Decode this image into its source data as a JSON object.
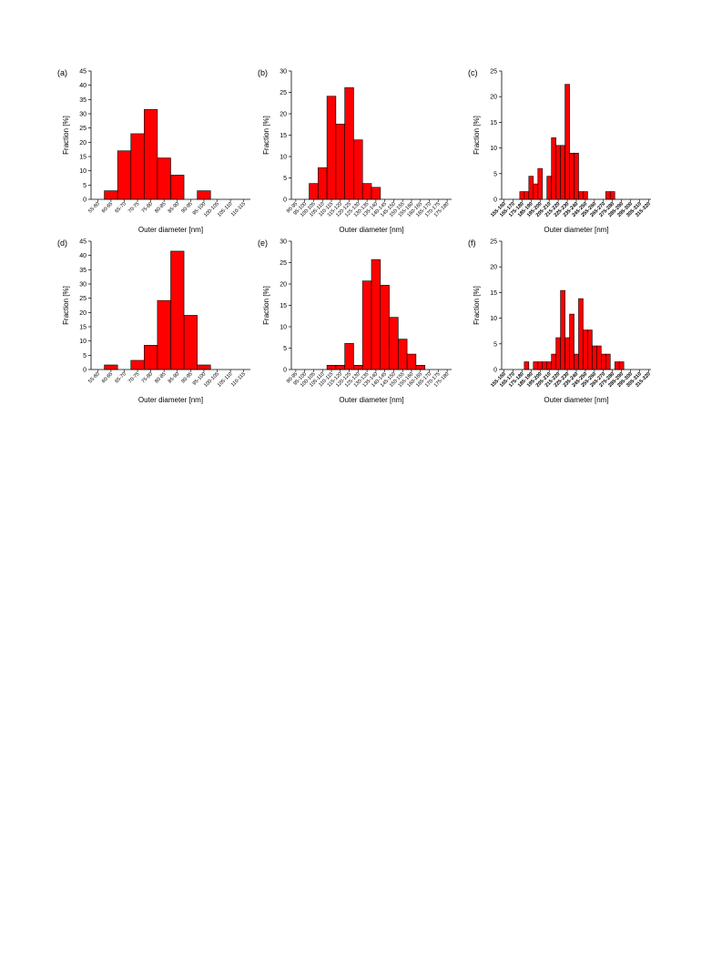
{
  "figure": {
    "bar_color": "#ff0000",
    "bar_stroke": "#000000"
  },
  "chart_data": [
    {
      "type": "bar",
      "panel_label": "(a)",
      "xlabel": "Outer diameter [nm]",
      "ylabel": "Fraction [%]",
      "ylim": [
        0,
        45
      ],
      "yticks": [
        0,
        5,
        10,
        15,
        20,
        25,
        30,
        35,
        40,
        45
      ],
      "categories": [
        "55-60",
        "60-65",
        "65-70",
        "70-75",
        "75-80",
        "80-85",
        "85-90",
        "90-95",
        "95-100",
        "100-105",
        "105-110",
        "110-115"
      ],
      "values": [
        0,
        3,
        17,
        23,
        31.5,
        14.5,
        8.5,
        0,
        3,
        0,
        0,
        0
      ]
    },
    {
      "type": "bar",
      "panel_label": "(b)",
      "xlabel": "Outer diameter [nm]",
      "ylabel": "Fraction [%]",
      "ylim": [
        0,
        30
      ],
      "yticks": [
        0,
        5,
        10,
        15,
        20,
        25,
        30
      ],
      "categories": [
        "90-95",
        "95-100",
        "100-105",
        "105-110",
        "110-115",
        "115-120",
        "120-125",
        "125-130",
        "130-135",
        "135-140",
        "140-145",
        "145-150",
        "150-155",
        "155-160",
        "160-165",
        "165-170",
        "170-175",
        "175-180"
      ],
      "values": [
        0,
        0,
        3.7,
        7.4,
        24.1,
        17.6,
        26.1,
        13.9,
        3.7,
        2.8,
        0,
        0,
        0,
        0,
        0,
        0,
        0,
        0
      ]
    },
    {
      "type": "bar",
      "panel_label": "(c)",
      "xlabel": "Outer diameter [nm]",
      "ylabel": "Fraction [%]",
      "ylim": [
        0,
        25
      ],
      "yticks": [
        0,
        5,
        10,
        15,
        20,
        25
      ],
      "categories": [
        "155-160",
        "160-165",
        "165-170",
        "170-175",
        "175-180",
        "180-185",
        "185-190",
        "190-195",
        "195-200",
        "200-205",
        "205-210",
        "210-215",
        "215-220",
        "220-225",
        "225-230",
        "230-235",
        "235-240",
        "240-245",
        "245-250",
        "250-255",
        "255-260",
        "260-265",
        "265-270",
        "270-275",
        "275-280",
        "280-285",
        "285-290",
        "290-295",
        "295-300",
        "300-305",
        "305-310",
        "310-315",
        "315-320"
      ],
      "tick_labels": [
        "155-160",
        "165-170",
        "175-180",
        "185-190",
        "195-200",
        "205-210",
        "215-220",
        "225-230",
        "235-240",
        "245-250",
        "255-260",
        "265-270",
        "275-280",
        "285-290",
        "295-300",
        "305-310",
        "315-320"
      ],
      "values": [
        0,
        0,
        0,
        0,
        1.5,
        1.5,
        4.5,
        3,
        6,
        0,
        4.5,
        12,
        10.5,
        10.5,
        22.4,
        9,
        9,
        1.5,
        1.5,
        0,
        0,
        0,
        0,
        1.5,
        1.5,
        0,
        0,
        0,
        0,
        0,
        0,
        0,
        0
      ]
    },
    {
      "type": "bar",
      "panel_label": "(d)",
      "xlabel": "Outer diameter [nm]",
      "ylabel": "Fraction [%]",
      "ylim": [
        0,
        45
      ],
      "yticks": [
        0,
        5,
        10,
        15,
        20,
        25,
        30,
        35,
        40,
        45
      ],
      "categories": [
        "55-60",
        "60-65",
        "65-70",
        "70-75",
        "75-80",
        "80-85",
        "85-90",
        "90-95",
        "95-100",
        "100-105",
        "105-110",
        "110-115"
      ],
      "values": [
        0,
        1.6,
        0,
        3.2,
        8.5,
        24.2,
        41.5,
        19,
        1.6,
        0,
        0,
        0
      ]
    },
    {
      "type": "bar",
      "panel_label": "(e)",
      "xlabel": "Outer diameter [nm]",
      "ylabel": "Fraction [%]",
      "ylim": [
        0,
        30
      ],
      "yticks": [
        0,
        5,
        10,
        15,
        20,
        25,
        30
      ],
      "categories": [
        "90-95",
        "95-100",
        "100-105",
        "105-110",
        "110-115",
        "115-120",
        "120-125",
        "125-130",
        "130-135",
        "135-140",
        "140-145",
        "145-150",
        "150-155",
        "155-160",
        "160-165",
        "165-170",
        "170-175",
        "175-180"
      ],
      "values": [
        0,
        0,
        0,
        0,
        1,
        1,
        6.1,
        1,
        20.7,
        25.7,
        19.7,
        12.2,
        7.1,
        3.6,
        1,
        0,
        0,
        0
      ]
    },
    {
      "type": "bar",
      "panel_label": "(f)",
      "xlabel": "Outer diameter [nm]",
      "ylabel": "Fraction [%]",
      "ylim": [
        0,
        25
      ],
      "yticks": [
        0,
        5,
        10,
        15,
        20,
        25
      ],
      "categories": [
        "155-160",
        "160-165",
        "165-170",
        "170-175",
        "175-180",
        "180-185",
        "185-190",
        "190-195",
        "195-200",
        "200-205",
        "205-210",
        "210-215",
        "215-220",
        "220-225",
        "225-230",
        "230-235",
        "235-240",
        "240-245",
        "245-250",
        "250-255",
        "255-260",
        "260-265",
        "265-270",
        "270-275",
        "275-280",
        "280-285",
        "285-290",
        "290-295",
        "295-300",
        "300-305",
        "305-310",
        "310-315",
        "315-320"
      ],
      "tick_labels": [
        "155-160",
        "165-170",
        "175-180",
        "185-190",
        "195-200",
        "205-210",
        "215-220",
        "225-230",
        "235-240",
        "245-250",
        "255-260",
        "265-270",
        "275-280",
        "285-290",
        "295-300",
        "305-310",
        "315-320"
      ],
      "values": [
        0,
        0,
        0,
        0,
        0,
        1.5,
        0,
        1.5,
        1.5,
        1.5,
        1.5,
        3,
        6.2,
        15.4,
        6.2,
        10.8,
        3,
        13.8,
        7.7,
        7.7,
        4.6,
        4.6,
        3,
        3,
        0,
        1.5,
        1.5,
        0,
        0,
        0,
        0,
        0,
        0
      ]
    }
  ]
}
